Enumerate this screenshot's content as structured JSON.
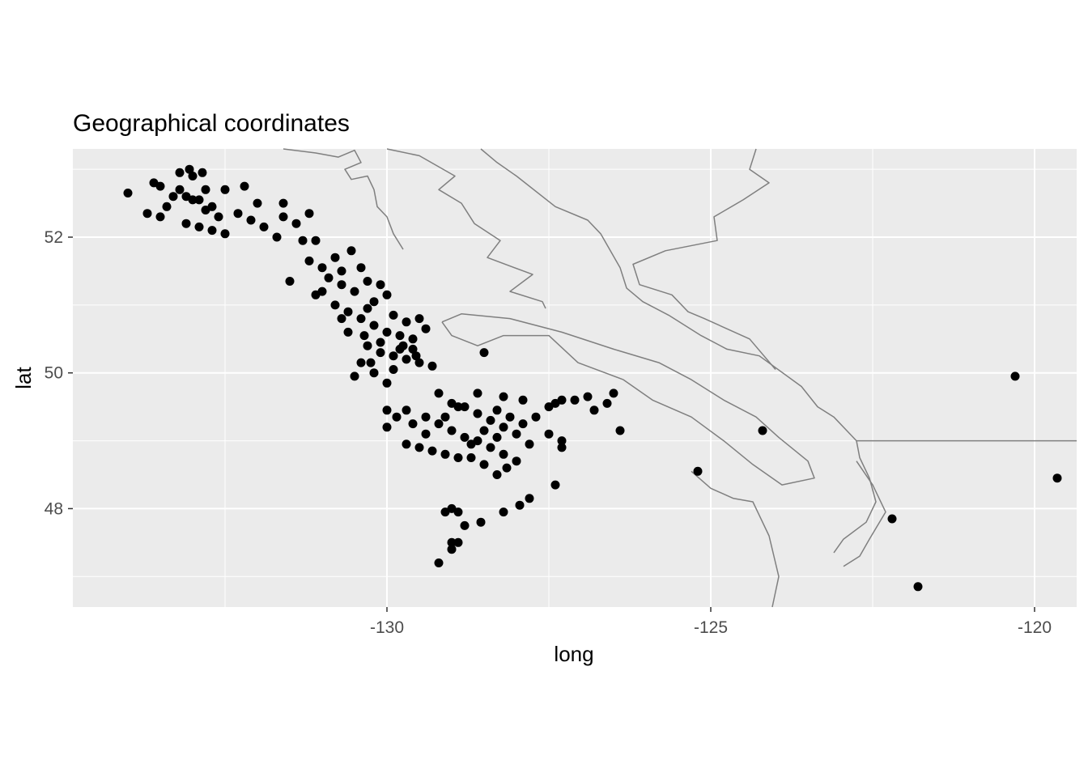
{
  "chart_data": {
    "type": "scatter",
    "title": "Geographical coordinates",
    "xlabel": "long",
    "ylabel": "lat",
    "xlim": [
      -134.85,
      -119.35
    ],
    "ylim": [
      46.55,
      53.3
    ],
    "x_ticks": [
      -130,
      -125,
      -120
    ],
    "y_ticks": [
      48,
      50,
      52
    ],
    "x_tick_labels": [
      "-130",
      "-125",
      "-120"
    ],
    "y_tick_labels": [
      "48",
      "50",
      "52"
    ],
    "grid": true,
    "legend": "none",
    "colors": {
      "panel_background": "#ebebeb",
      "grid_major": "#ffffff",
      "points": "#000000",
      "coastline": "#7f7f7f"
    },
    "coastline": [
      [
        [
          -131.6,
          53.3
        ],
        [
          -131.1,
          53.24
        ],
        [
          -130.75,
          53.18
        ],
        [
          -130.5,
          53.28
        ],
        [
          -130.4,
          53.1
        ],
        [
          -130.65,
          53.0
        ],
        [
          -130.55,
          52.85
        ],
        [
          -130.3,
          52.9
        ],
        [
          -130.2,
          52.7
        ],
        [
          -130.15,
          52.45
        ],
        [
          -130.0,
          52.3
        ],
        [
          -129.9,
          52.05
        ],
        [
          -129.75,
          51.82
        ]
      ],
      [
        [
          -130.0,
          53.3
        ],
        [
          -129.5,
          53.2
        ],
        [
          -128.95,
          52.9
        ],
        [
          -129.2,
          52.7
        ],
        [
          -128.85,
          52.5
        ],
        [
          -128.65,
          52.2
        ],
        [
          -128.25,
          51.95
        ],
        [
          -128.45,
          51.7
        ],
        [
          -127.75,
          51.45
        ],
        [
          -128.1,
          51.2
        ],
        [
          -127.6,
          51.05
        ],
        [
          -127.55,
          50.95
        ]
      ],
      [
        [
          -128.55,
          53.3
        ],
        [
          -128.3,
          53.1
        ],
        [
          -128.0,
          52.9
        ],
        [
          -127.4,
          52.45
        ],
        [
          -126.9,
          52.25
        ],
        [
          -126.7,
          52.05
        ],
        [
          -126.4,
          51.55
        ],
        [
          -126.3,
          51.25
        ],
        [
          -126.05,
          51.05
        ],
        [
          -125.65,
          50.85
        ],
        [
          -125.15,
          50.55
        ],
        [
          -124.75,
          50.35
        ],
        [
          -124.25,
          50.25
        ],
        [
          -123.6,
          49.8
        ],
        [
          -123.35,
          49.5
        ],
        [
          -123.1,
          49.35
        ],
        [
          -122.9,
          49.15
        ],
        [
          -122.75,
          49.0
        ],
        [
          -122.7,
          48.75
        ],
        [
          -122.55,
          48.45
        ],
        [
          -122.45,
          48.1
        ],
        [
          -122.6,
          47.8
        ],
        [
          -122.95,
          47.55
        ],
        [
          -123.1,
          47.35
        ]
      ],
      [
        [
          -124.3,
          53.3
        ],
        [
          -124.4,
          53.0
        ],
        [
          -124.1,
          52.8
        ],
        [
          -124.5,
          52.55
        ],
        [
          -124.95,
          52.3
        ],
        [
          -124.9,
          51.95
        ],
        [
          -125.7,
          51.8
        ],
        [
          -126.2,
          51.6
        ],
        [
          -126.1,
          51.3
        ],
        [
          -125.6,
          51.15
        ],
        [
          -125.35,
          50.9
        ],
        [
          -125.1,
          50.8
        ],
        [
          -124.4,
          50.5
        ],
        [
          -124.0,
          50.05
        ]
      ],
      [
        [
          -129.15,
          50.75
        ],
        [
          -129.0,
          50.55
        ],
        [
          -128.6,
          50.4
        ],
        [
          -128.2,
          50.55
        ],
        [
          -127.5,
          50.55
        ],
        [
          -127.05,
          50.15
        ],
        [
          -126.35,
          49.9
        ],
        [
          -125.9,
          49.6
        ],
        [
          -125.3,
          49.35
        ],
        [
          -124.8,
          49.0
        ],
        [
          -124.35,
          48.65
        ],
        [
          -123.9,
          48.35
        ],
        [
          -123.4,
          48.45
        ],
        [
          -123.5,
          48.7
        ],
        [
          -123.95,
          49.05
        ],
        [
          -124.3,
          49.35
        ],
        [
          -124.8,
          49.6
        ],
        [
          -125.3,
          49.9
        ],
        [
          -125.8,
          50.15
        ],
        [
          -126.5,
          50.35
        ],
        [
          -127.3,
          50.6
        ],
        [
          -128.1,
          50.8
        ],
        [
          -128.85,
          50.87
        ],
        [
          -129.15,
          50.75
        ]
      ],
      [
        [
          -125.3,
          48.55
        ],
        [
          -125.0,
          48.3
        ],
        [
          -124.65,
          48.15
        ],
        [
          -124.35,
          48.1
        ],
        [
          -124.1,
          47.6
        ],
        [
          -123.95,
          47.0
        ],
        [
          -124.05,
          46.55
        ]
      ],
      [
        [
          -122.75,
          48.7
        ],
        [
          -122.5,
          48.35
        ],
        [
          -122.3,
          47.95
        ],
        [
          -122.55,
          47.55
        ],
        [
          -122.7,
          47.3
        ],
        [
          -122.95,
          47.15
        ]
      ],
      [
        [
          -122.75,
          49.0
        ],
        [
          -119.35,
          49.0
        ]
      ]
    ],
    "points": [
      [
        -134.0,
        52.65
      ],
      [
        -133.5,
        52.75
      ],
      [
        -133.2,
        52.95
      ],
      [
        -133.0,
        52.9
      ],
      [
        -133.2,
        52.7
      ],
      [
        -133.1,
        52.6
      ],
      [
        -132.9,
        52.55
      ],
      [
        -132.8,
        52.7
      ],
      [
        -132.7,
        52.45
      ],
      [
        -132.6,
        52.3
      ],
      [
        -132.8,
        52.4
      ],
      [
        -133.0,
        52.55
      ],
      [
        -133.3,
        52.6
      ],
      [
        -133.4,
        52.45
      ],
      [
        -133.5,
        52.3
      ],
      [
        -133.7,
        52.35
      ],
      [
        -133.1,
        52.2
      ],
      [
        -132.9,
        52.15
      ],
      [
        -132.7,
        52.1
      ],
      [
        -132.5,
        52.05
      ],
      [
        -132.3,
        52.35
      ],
      [
        -132.1,
        52.25
      ],
      [
        -131.9,
        52.15
      ],
      [
        -131.7,
        52.0
      ],
      [
        -132.0,
        52.5
      ],
      [
        -131.6,
        52.3
      ],
      [
        -131.4,
        52.2
      ],
      [
        -131.3,
        51.95
      ],
      [
        -131.1,
        51.95
      ],
      [
        -131.6,
        52.5
      ],
      [
        -131.2,
        52.35
      ],
      [
        -132.5,
        52.7
      ],
      [
        -132.2,
        52.75
      ],
      [
        -133.05,
        53.0
      ],
      [
        -132.85,
        52.95
      ],
      [
        -133.6,
        52.8
      ],
      [
        -131.2,
        51.65
      ],
      [
        -131.0,
        51.55
      ],
      [
        -130.8,
        51.7
      ],
      [
        -130.7,
        51.5
      ],
      [
        -130.55,
        51.8
      ],
      [
        -130.4,
        51.55
      ],
      [
        -130.3,
        51.35
      ],
      [
        -130.1,
        51.3
      ],
      [
        -130.0,
        51.15
      ],
      [
        -130.2,
        51.05
      ],
      [
        -130.5,
        51.2
      ],
      [
        -130.6,
        50.9
      ],
      [
        -130.4,
        50.8
      ],
      [
        -130.2,
        50.7
      ],
      [
        -130.0,
        50.6
      ],
      [
        -129.8,
        50.55
      ],
      [
        -129.6,
        50.5
      ],
      [
        -129.4,
        50.65
      ],
      [
        -129.9,
        50.85
      ],
      [
        -129.7,
        50.75
      ],
      [
        -130.3,
        50.4
      ],
      [
        -130.1,
        50.3
      ],
      [
        -129.9,
        50.25
      ],
      [
        -129.7,
        50.2
      ],
      [
        -129.5,
        50.15
      ],
      [
        -129.3,
        50.1
      ],
      [
        -130.4,
        50.15
      ],
      [
        -130.2,
        50.0
      ],
      [
        -130.0,
        49.85
      ],
      [
        -130.5,
        49.95
      ],
      [
        -130.6,
        50.6
      ],
      [
        -130.8,
        51.0
      ],
      [
        -131.0,
        51.2
      ],
      [
        -131.1,
        51.15
      ],
      [
        -131.5,
        51.35
      ],
      [
        -130.7,
        51.3
      ],
      [
        -130.9,
        51.4
      ],
      [
        -130.3,
        50.95
      ],
      [
        -130.1,
        50.45
      ],
      [
        -129.8,
        50.35
      ],
      [
        -129.6,
        50.35
      ],
      [
        -129.5,
        50.8
      ],
      [
        -130.25,
        50.15
      ],
      [
        -130.35,
        50.55
      ],
      [
        -129.9,
        50.05
      ],
      [
        -129.75,
        50.4
      ],
      [
        -129.55,
        50.25
      ],
      [
        -130.7,
        50.8
      ],
      [
        -129.2,
        49.7
      ],
      [
        -129.0,
        49.55
      ],
      [
        -128.8,
        49.5
      ],
      [
        -128.6,
        49.4
      ],
      [
        -128.4,
        49.3
      ],
      [
        -128.2,
        49.2
      ],
      [
        -128.0,
        49.1
      ],
      [
        -127.8,
        48.95
      ],
      [
        -129.4,
        49.35
      ],
      [
        -129.2,
        49.25
      ],
      [
        -129.0,
        49.15
      ],
      [
        -128.8,
        49.05
      ],
      [
        -128.6,
        49.0
      ],
      [
        -128.4,
        48.9
      ],
      [
        -128.2,
        48.8
      ],
      [
        -128.0,
        48.7
      ],
      [
        -128.5,
        48.65
      ],
      [
        -128.7,
        48.75
      ],
      [
        -128.3,
        48.5
      ],
      [
        -128.15,
        48.6
      ],
      [
        -129.7,
        49.45
      ],
      [
        -129.6,
        49.25
      ],
      [
        -129.85,
        49.35
      ],
      [
        -130.0,
        49.2
      ],
      [
        -129.7,
        48.95
      ],
      [
        -129.5,
        48.9
      ],
      [
        -129.3,
        48.85
      ],
      [
        -129.1,
        48.8
      ],
      [
        -128.9,
        48.75
      ],
      [
        -128.7,
        48.95
      ],
      [
        -128.5,
        49.15
      ],
      [
        -128.3,
        49.05
      ],
      [
        -127.9,
        49.25
      ],
      [
        -127.7,
        49.35
      ],
      [
        -127.5,
        49.5
      ],
      [
        -127.3,
        49.6
      ],
      [
        -127.1,
        49.6
      ],
      [
        -127.4,
        49.55
      ],
      [
        -127.3,
        49.0
      ],
      [
        -127.5,
        49.1
      ],
      [
        -127.3,
        48.9
      ],
      [
        -128.2,
        49.65
      ],
      [
        -127.9,
        49.6
      ],
      [
        -126.9,
        49.65
      ],
      [
        -126.8,
        49.45
      ],
      [
        -126.6,
        49.55
      ],
      [
        -126.5,
        49.7
      ],
      [
        -128.9,
        49.5
      ],
      [
        -128.6,
        49.7
      ],
      [
        -128.3,
        49.45
      ],
      [
        -128.1,
        49.35
      ],
      [
        -130.0,
        49.45
      ],
      [
        -129.4,
        49.1
      ],
      [
        -129.1,
        49.35
      ],
      [
        -128.5,
        50.3
      ],
      [
        -127.4,
        48.35
      ],
      [
        -127.8,
        48.15
      ],
      [
        -127.95,
        48.05
      ],
      [
        -128.2,
        47.95
      ],
      [
        -128.55,
        47.8
      ],
      [
        -128.8,
        47.75
      ],
      [
        -128.9,
        47.95
      ],
      [
        -129.0,
        48.0
      ],
      [
        -129.1,
        47.95
      ],
      [
        -129.0,
        47.5
      ],
      [
        -128.9,
        47.5
      ],
      [
        -129.0,
        47.4
      ],
      [
        -129.2,
        47.2
      ],
      [
        -126.4,
        49.15
      ],
      [
        -124.2,
        49.15
      ],
      [
        -125.2,
        48.55
      ],
      [
        -122.2,
        47.85
      ],
      [
        -121.8,
        46.85
      ],
      [
        -120.3,
        49.95
      ],
      [
        -119.65,
        48.45
      ]
    ]
  }
}
